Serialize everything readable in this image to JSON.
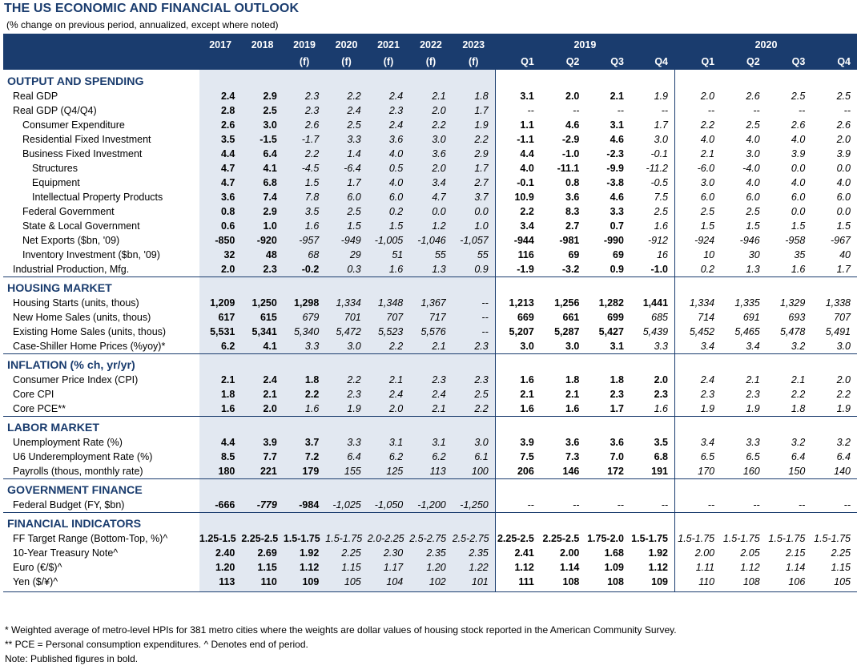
{
  "title": "THE US ECONOMIC AND FINANCIAL OUTLOOK",
  "subtitle": "(% change on previous period, annualized, except where noted)",
  "header": {
    "year_2019": "2019",
    "year_2020": "2020",
    "annual": [
      {
        "year": "2017",
        "sub": ""
      },
      {
        "year": "2018",
        "sub": ""
      },
      {
        "year": "2019",
        "sub": "(f)"
      },
      {
        "year": "2020",
        "sub": "(f)"
      },
      {
        "year": "2021",
        "sub": "(f)"
      },
      {
        "year": "2022",
        "sub": "(f)"
      },
      {
        "year": "2023",
        "sub": "(f)"
      }
    ],
    "quarters": [
      "Q1",
      "Q2",
      "Q3",
      "Q4",
      "Q1",
      "Q2",
      "Q3",
      "Q4"
    ]
  },
  "sections": [
    {
      "title": "OUTPUT AND SPENDING",
      "rows": [
        {
          "label": "Real GDP",
          "indent": 1,
          "annual": [
            "2.4",
            "2.9",
            "2.3",
            "2.2",
            "2.4",
            "2.1",
            "1.8"
          ],
          "annual_bold": 2,
          "q": [
            "3.1",
            "2.0",
            "2.1",
            "1.9",
            "2.0",
            "2.6",
            "2.5",
            "2.5"
          ],
          "q_bold": 3
        },
        {
          "label": "Real GDP (Q4/Q4)",
          "indent": 1,
          "annual": [
            "2.8",
            "2.5",
            "2.3",
            "2.4",
            "2.3",
            "2.0",
            "1.7"
          ],
          "annual_bold": 2,
          "q": [
            "--",
            "--",
            "--",
            "--",
            "--",
            "--",
            "--",
            "--"
          ],
          "q_bold": 0
        },
        {
          "label": "Consumer Expenditure",
          "indent": 2,
          "annual": [
            "2.6",
            "3.0",
            "2.6",
            "2.5",
            "2.4",
            "2.2",
            "1.9"
          ],
          "annual_bold": 2,
          "q": [
            "1.1",
            "4.6",
            "3.1",
            "1.7",
            "2.2",
            "2.5",
            "2.6",
            "2.6"
          ],
          "q_bold": 3
        },
        {
          "label": "Residential Fixed Investment",
          "indent": 2,
          "annual": [
            "3.5",
            "-1.5",
            "-1.7",
            "3.3",
            "3.6",
            "3.0",
            "2.2"
          ],
          "annual_bold": 2,
          "q": [
            "-1.1",
            "-2.9",
            "4.6",
            "3.0",
            "4.0",
            "4.0",
            "4.0",
            "2.0"
          ],
          "q_bold": 3
        },
        {
          "label": "Business Fixed Investment",
          "indent": 2,
          "annual": [
            "4.4",
            "6.4",
            "2.2",
            "1.4",
            "4.0",
            "3.6",
            "2.9"
          ],
          "annual_bold": 2,
          "q": [
            "4.4",
            "-1.0",
            "-2.3",
            "-0.1",
            "2.1",
            "3.0",
            "3.9",
            "3.9"
          ],
          "q_bold": 3
        },
        {
          "label": "Structures",
          "indent": 3,
          "annual": [
            "4.7",
            "4.1",
            "-4.5",
            "-6.4",
            "0.5",
            "2.0",
            "1.7"
          ],
          "annual_bold": 2,
          "q": [
            "4.0",
            "-11.1",
            "-9.9",
            "-11.2",
            "-6.0",
            "-4.0",
            "0.0",
            "0.0"
          ],
          "q_bold": 3
        },
        {
          "label": "Equipment",
          "indent": 3,
          "annual": [
            "4.7",
            "6.8",
            "1.5",
            "1.7",
            "4.0",
            "3.4",
            "2.7"
          ],
          "annual_bold": 2,
          "q": [
            "-0.1",
            "0.8",
            "-3.8",
            "-0.5",
            "3.0",
            "4.0",
            "4.0",
            "4.0"
          ],
          "q_bold": 3
        },
        {
          "label": "Intellectual Property Products",
          "indent": 3,
          "annual": [
            "3.6",
            "7.4",
            "7.8",
            "6.0",
            "6.0",
            "4.7",
            "3.7"
          ],
          "annual_bold": 2,
          "q": [
            "10.9",
            "3.6",
            "4.6",
            "7.5",
            "6.0",
            "6.0",
            "6.0",
            "6.0"
          ],
          "q_bold": 3
        },
        {
          "label": "Federal Government",
          "indent": 2,
          "annual": [
            "0.8",
            "2.9",
            "3.5",
            "2.5",
            "0.2",
            "0.0",
            "0.0"
          ],
          "annual_bold": 2,
          "q": [
            "2.2",
            "8.3",
            "3.3",
            "2.5",
            "2.5",
            "2.5",
            "0.0",
            "0.0"
          ],
          "q_bold": 3
        },
        {
          "label": "State & Local Government",
          "indent": 2,
          "annual": [
            "0.6",
            "1.0",
            "1.6",
            "1.5",
            "1.5",
            "1.2",
            "1.0"
          ],
          "annual_bold": 2,
          "q": [
            "3.4",
            "2.7",
            "0.7",
            "1.6",
            "1.5",
            "1.5",
            "1.5",
            "1.5"
          ],
          "q_bold": 3
        },
        {
          "label": "Net Exports ($bn, '09)",
          "indent": 2,
          "annual": [
            "-850",
            "-920",
            "-957",
            "-949",
            "-1,005",
            "-1,046",
            "-1,057"
          ],
          "annual_bold": 2,
          "q": [
            "-944",
            "-981",
            "-990",
            "-912",
            "-924",
            "-946",
            "-958",
            "-967"
          ],
          "q_bold": 3
        },
        {
          "label": "Inventory Investment ($bn, '09)",
          "indent": 2,
          "annual": [
            "32",
            "48",
            "68",
            "29",
            "51",
            "55",
            "55"
          ],
          "annual_bold": 2,
          "q": [
            "116",
            "69",
            "69",
            "16",
            "10",
            "30",
            "35",
            "40"
          ],
          "q_bold": 3
        },
        {
          "label": "Industrial Production, Mfg.",
          "indent": 1,
          "annual": [
            "2.0",
            "2.3",
            "-0.2",
            "0.3",
            "1.6",
            "1.3",
            "0.9"
          ],
          "annual_bold": 3,
          "q": [
            "-1.9",
            "-3.2",
            "0.9",
            "-1.0",
            "0.2",
            "1.3",
            "1.6",
            "1.7"
          ],
          "q_bold": 4
        }
      ]
    },
    {
      "title": "HOUSING MARKET",
      "rows": [
        {
          "label": "Housing Starts (units, thous)",
          "indent": 1,
          "annual": [
            "1,209",
            "1,250",
            "1,298",
            "1,334",
            "1,348",
            "1,367",
            "--"
          ],
          "annual_bold": 3,
          "q": [
            "1,213",
            "1,256",
            "1,282",
            "1,441",
            "1,334",
            "1,335",
            "1,329",
            "1,338"
          ],
          "q_bold": 4
        },
        {
          "label": "New Home Sales (units, thous)",
          "indent": 1,
          "annual": [
            "617",
            "615",
            "679",
            "701",
            "707",
            "717",
            "--"
          ],
          "annual_bold": 2,
          "q": [
            "669",
            "661",
            "699",
            "685",
            "714",
            "691",
            "693",
            "707"
          ],
          "q_bold": 3
        },
        {
          "label": "Existing Home Sales (units, thous)",
          "indent": 1,
          "annual": [
            "5,531",
            "5,341",
            "5,340",
            "5,472",
            "5,523",
            "5,576",
            "--"
          ],
          "annual_bold": 2,
          "q": [
            "5,207",
            "5,287",
            "5,427",
            "5,439",
            "5,452",
            "5,465",
            "5,478",
            "5,491"
          ],
          "q_bold": 3
        },
        {
          "label": "Case-Shiller Home Prices (%yoy)*",
          "indent": 1,
          "annual": [
            "6.2",
            "4.1",
            "3.3",
            "3.0",
            "2.2",
            "2.1",
            "2.3"
          ],
          "annual_bold": 2,
          "q": [
            "3.0",
            "3.0",
            "3.1",
            "3.3",
            "3.4",
            "3.4",
            "3.2",
            "3.0"
          ],
          "q_bold": 3
        }
      ]
    },
    {
      "title": "INFLATION (% ch, yr/yr)",
      "rows": [
        {
          "label": "Consumer Price Index (CPI)",
          "indent": 1,
          "annual": [
            "2.1",
            "2.4",
            "1.8",
            "2.2",
            "2.1",
            "2.3",
            "2.3"
          ],
          "annual_bold": 3,
          "q": [
            "1.6",
            "1.8",
            "1.8",
            "2.0",
            "2.4",
            "2.1",
            "2.1",
            "2.0"
          ],
          "q_bold": 4
        },
        {
          "label": "Core CPI",
          "indent": 1,
          "annual": [
            "1.8",
            "2.1",
            "2.2",
            "2.3",
            "2.4",
            "2.4",
            "2.5"
          ],
          "annual_bold": 3,
          "q": [
            "2.1",
            "2.1",
            "2.3",
            "2.3",
            "2.3",
            "2.3",
            "2.2",
            "2.2"
          ],
          "q_bold": 4
        },
        {
          "label": "Core PCE**",
          "indent": 1,
          "annual": [
            "1.6",
            "2.0",
            "1.6",
            "1.9",
            "2.0",
            "2.1",
            "2.2"
          ],
          "annual_bold": 2,
          "q": [
            "1.6",
            "1.6",
            "1.7",
            "1.6",
            "1.9",
            "1.9",
            "1.8",
            "1.9"
          ],
          "q_bold": 3
        }
      ]
    },
    {
      "title": "LABOR MARKET",
      "rows": [
        {
          "label": "Unemployment Rate (%)",
          "indent": 1,
          "annual": [
            "4.4",
            "3.9",
            "3.7",
            "3.3",
            "3.1",
            "3.1",
            "3.0"
          ],
          "annual_bold": 3,
          "q": [
            "3.9",
            "3.6",
            "3.6",
            "3.5",
            "3.4",
            "3.3",
            "3.2",
            "3.2"
          ],
          "q_bold": 4
        },
        {
          "label": "U6 Underemployment Rate (%)",
          "indent": 1,
          "annual": [
            "8.5",
            "7.7",
            "7.2",
            "6.4",
            "6.2",
            "6.2",
            "6.1"
          ],
          "annual_bold": 3,
          "q": [
            "7.5",
            "7.3",
            "7.0",
            "6.8",
            "6.5",
            "6.5",
            "6.4",
            "6.4"
          ],
          "q_bold": 4
        },
        {
          "label": "Payrolls (thous, monthly rate)",
          "indent": 1,
          "annual": [
            "180",
            "221",
            "179",
            "155",
            "125",
            "113",
            "100"
          ],
          "annual_bold": 3,
          "q": [
            "206",
            "146",
            "172",
            "191",
            "170",
            "160",
            "150",
            "140"
          ],
          "q_bold": 4
        }
      ]
    },
    {
      "title": "GOVERNMENT FINANCE",
      "rows": [
        {
          "label": "Federal Budget (FY, $bn)",
          "indent": 1,
          "annual": [
            "-666",
            "-779",
            "-984",
            "-1,025",
            "-1,050",
            "-1,200",
            "-1,250"
          ],
          "annual_bold": 1,
          "annual_bold_extra": 2,
          "q": [
            "--",
            "--",
            "--",
            "--",
            "--",
            "--",
            "--",
            "--"
          ],
          "q_bold": 0
        }
      ]
    },
    {
      "title": "FINANCIAL INDICATORS",
      "rows": [
        {
          "label": "FF Target Range (Bottom-Top, %)^",
          "indent": 1,
          "annual": [
            "1.25-1.5",
            "2.25-2.5",
            "1.5-1.75",
            "1.5-1.75",
            "2.0-2.25",
            "2.5-2.75",
            "2.5-2.75"
          ],
          "annual_bold": 3,
          "q": [
            "2.25-2.5",
            "2.25-2.5",
            "1.75-2.0",
            "1.5-1.75",
            "1.5-1.75",
            "1.5-1.75",
            "1.5-1.75",
            "1.5-1.75"
          ],
          "q_bold": 4
        },
        {
          "label": "10-Year Treasury Note^",
          "indent": 1,
          "annual": [
            "2.40",
            "2.69",
            "1.92",
            "2.25",
            "2.30",
            "2.35",
            "2.35"
          ],
          "annual_bold": 3,
          "q": [
            "2.41",
            "2.00",
            "1.68",
            "1.92",
            "2.00",
            "2.05",
            "2.15",
            "2.25"
          ],
          "q_bold": 4
        },
        {
          "label": "Euro (€/$)^",
          "indent": 1,
          "annual": [
            "1.20",
            "1.15",
            "1.12",
            "1.15",
            "1.17",
            "1.20",
            "1.22"
          ],
          "annual_bold": 3,
          "q": [
            "1.12",
            "1.14",
            "1.09",
            "1.12",
            "1.11",
            "1.12",
            "1.14",
            "1.15"
          ],
          "q_bold": 4
        },
        {
          "label": "Yen ($/¥)^",
          "indent": 1,
          "annual": [
            "113",
            "110",
            "109",
            "105",
            "104",
            "102",
            "101"
          ],
          "annual_bold": 3,
          "q": [
            "111",
            "108",
            "108",
            "109",
            "110",
            "108",
            "106",
            "105"
          ],
          "q_bold": 4
        }
      ]
    }
  ],
  "footnotes": [
    "* Weighted average of metro-level HPIs for 381 metro cities where the weights are dollar values of housing stock reported in the American Community Survey.",
    "** PCE = Personal consumption expenditures.   ^ Denotes end of period.",
    "Note: Published figures in bold."
  ]
}
